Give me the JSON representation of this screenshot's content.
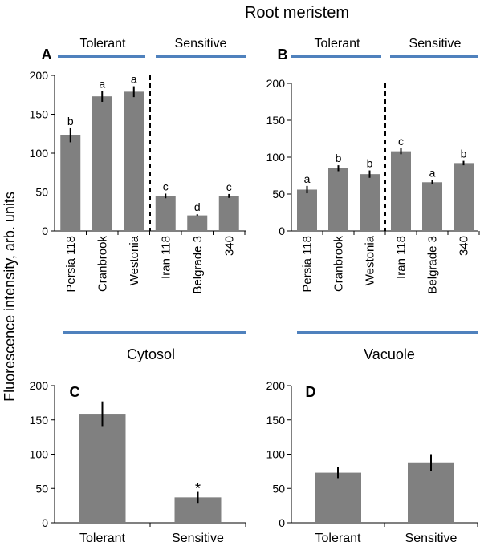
{
  "title": "Root meristem",
  "ylabel": "Fluorescence intensity, arb. units",
  "group_labels": {
    "tolerant": "Tolerant",
    "sensitive": "Sensitive"
  },
  "section_labels": {
    "cytosol": "Cytosol",
    "vacuole": "Vacuole"
  },
  "colors": {
    "bar": "#808080",
    "group_line": "#4f81bd",
    "axis": "#000000",
    "error": "#000000"
  },
  "chart_data": [
    {
      "panel": "A",
      "type": "bar",
      "categories": [
        "Persia 118",
        "Cranbrook",
        "Westonia",
        "Iran 118",
        "Belgrade 3",
        "340"
      ],
      "groups": [
        "Tolerant",
        "Tolerant",
        "Tolerant",
        "Sensitive",
        "Sensitive",
        "Sensitive"
      ],
      "values": [
        123,
        173,
        179,
        45,
        20,
        45
      ],
      "errors": [
        9,
        7,
        7,
        3,
        1.5,
        2.5
      ],
      "labels": [
        "b",
        "a",
        "a",
        "c",
        "d",
        "c"
      ],
      "ylim": [
        0,
        200
      ],
      "yticks": [
        0,
        50,
        100,
        150,
        200
      ]
    },
    {
      "panel": "B",
      "type": "bar",
      "categories": [
        "Persia 118",
        "Cranbrook",
        "Westonia",
        "Iran 118",
        "Belgrade 3",
        "340"
      ],
      "groups": [
        "Tolerant",
        "Tolerant",
        "Tolerant",
        "Sensitive",
        "Sensitive",
        "Sensitive"
      ],
      "values": [
        56,
        85,
        77,
        108,
        66,
        92
      ],
      "errors": [
        5,
        4,
        5,
        4,
        3,
        3
      ],
      "labels": [
        "a",
        "b",
        "b",
        "c",
        "a",
        "b"
      ],
      "ylim": [
        0,
        200
      ],
      "yticks": [
        0,
        50,
        100,
        150,
        200
      ]
    },
    {
      "panel": "C",
      "title": "Cytosol",
      "type": "bar",
      "categories": [
        "Tolerant",
        "Sensitive"
      ],
      "values": [
        159,
        37
      ],
      "errors": [
        18,
        8
      ],
      "labels": [
        "",
        "*"
      ],
      "ylim": [
        0,
        200
      ],
      "yticks": [
        0,
        50,
        100,
        150,
        200
      ]
    },
    {
      "panel": "D",
      "title": "Vacuole",
      "type": "bar",
      "categories": [
        "Tolerant",
        "Sensitive"
      ],
      "values": [
        73,
        88
      ],
      "errors": [
        8,
        12
      ],
      "labels": [
        "",
        ""
      ],
      "ylim": [
        0,
        200
      ],
      "yticks": [
        0,
        50,
        100,
        150,
        200
      ]
    }
  ]
}
